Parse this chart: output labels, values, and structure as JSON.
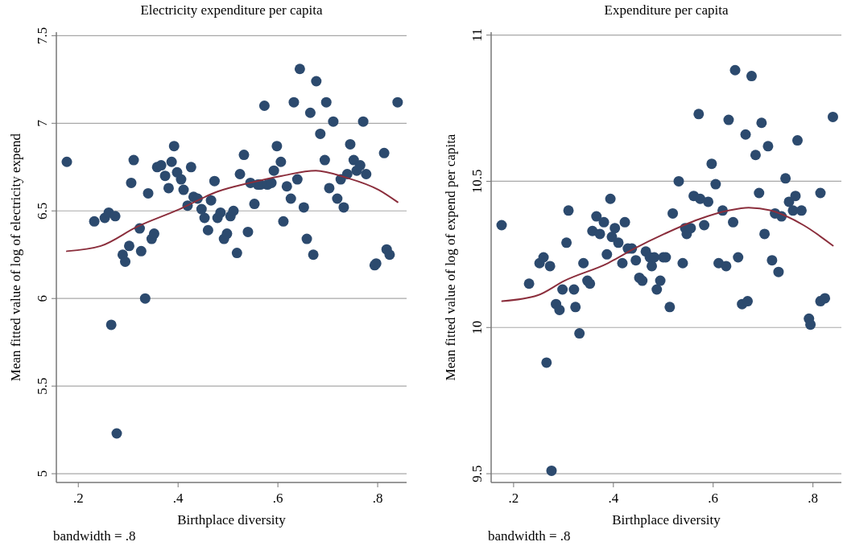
{
  "chart_data": [
    {
      "type": "scatter",
      "title": "Electricity expenditure per capita",
      "xlabel": "Birthplace diversity",
      "ylabel": "Mean fitted value of log of electricity expend",
      "annotations": [
        "bandwidth = .8"
      ],
      "xlim": [
        0.156,
        0.858
      ],
      "ylim": [
        4.95,
        7.52
      ],
      "xticks": [
        {
          "value": 0.2,
          "label": ".2"
        },
        {
          "value": 0.4,
          "label": ".4"
        },
        {
          "value": 0.6,
          "label": ".6"
        },
        {
          "value": 0.8,
          "label": ".8"
        }
      ],
      "yticks": [
        5,
        5.5,
        6,
        6.5,
        7,
        7.5
      ],
      "grid": "y",
      "marker": "circle",
      "series": [
        {
          "color": "#2c4a6e",
          "x": [
            0.177,
            0.232,
            0.253,
            0.261,
            0.274,
            0.266,
            0.277,
            0.289,
            0.294,
            0.302,
            0.306,
            0.311,
            0.323,
            0.326,
            0.334,
            0.34,
            0.347,
            0.352,
            0.358,
            0.366,
            0.374,
            0.381,
            0.387,
            0.392,
            0.398,
            0.406,
            0.411,
            0.419,
            0.426,
            0.431,
            0.439,
            0.447,
            0.453,
            0.46,
            0.466,
            0.473,
            0.479,
            0.485,
            0.492,
            0.498,
            0.505,
            0.511,
            0.518,
            0.524,
            0.532,
            0.54,
            0.545,
            0.553,
            0.56,
            0.565,
            0.573,
            0.579,
            0.587,
            0.592,
            0.598,
            0.606,
            0.611,
            0.618,
            0.626,
            0.632,
            0.639,
            0.644,
            0.652,
            0.658,
            0.665,
            0.671,
            0.677,
            0.685,
            0.694,
            0.697,
            0.703,
            0.711,
            0.719,
            0.726,
            0.732,
            0.739,
            0.745,
            0.752,
            0.758,
            0.765,
            0.771,
            0.777,
            0.794,
            0.797,
            0.813,
            0.818,
            0.824,
            0.84
          ],
          "values": [
            6.78,
            6.44,
            6.46,
            6.49,
            6.47,
            5.85,
            5.23,
            6.25,
            6.21,
            6.3,
            6.66,
            6.79,
            6.4,
            6.27,
            6.0,
            6.6,
            6.34,
            6.37,
            6.75,
            6.76,
            6.7,
            6.63,
            6.78,
            6.87,
            6.72,
            6.68,
            6.62,
            6.53,
            6.75,
            6.58,
            6.57,
            6.51,
            6.46,
            6.39,
            6.56,
            6.67,
            6.46,
            6.49,
            6.34,
            6.37,
            6.47,
            6.5,
            6.26,
            6.71,
            6.82,
            6.38,
            6.66,
            6.54,
            6.65,
            6.65,
            7.1,
            6.65,
            6.66,
            6.73,
            6.87,
            6.78,
            6.44,
            6.64,
            6.57,
            7.12,
            6.68,
            7.31,
            6.52,
            6.34,
            7.06,
            6.25,
            7.24,
            6.94,
            6.79,
            7.12,
            6.63,
            7.01,
            6.57,
            6.68,
            6.52,
            6.71,
            6.88,
            6.79,
            6.73,
            6.76,
            7.01,
            6.71,
            6.19,
            6.2,
            6.83,
            6.28,
            6.25,
            7.12
          ]
        },
        {
          "type": "line",
          "color": "#8b2e3c",
          "marker": "none",
          "x": [
            0.177,
            0.245,
            0.318,
            0.403,
            0.479,
            0.544,
            0.608,
            0.676,
            0.737,
            0.802,
            0.84
          ],
          "values": [
            6.27,
            6.3,
            6.41,
            6.51,
            6.61,
            6.66,
            6.7,
            6.73,
            6.69,
            6.62,
            6.55
          ]
        }
      ]
    },
    {
      "type": "scatter",
      "title": "Expenditure per capita",
      "xlabel": "Birthplace diversity",
      "ylabel": "Mean fitted value of log of expend per capita",
      "annotations": [
        "bandwidth = .8"
      ],
      "xlim": [
        0.155,
        0.857
      ],
      "ylim": [
        9.47,
        11.01
      ],
      "xticks": [
        {
          "value": 0.2,
          "label": ".2"
        },
        {
          "value": 0.4,
          "label": ".4"
        },
        {
          "value": 0.6,
          "label": ".6"
        },
        {
          "value": 0.8,
          "label": ".8"
        }
      ],
      "yticks": [
        9.5,
        10,
        10.5,
        11
      ],
      "grid": "y",
      "marker": "circle",
      "series": [
        {
          "color": "#2c4a6e",
          "x": [
            0.176,
            0.231,
            0.252,
            0.26,
            0.273,
            0.266,
            0.276,
            0.285,
            0.292,
            0.298,
            0.306,
            0.31,
            0.321,
            0.324,
            0.332,
            0.34,
            0.348,
            0.353,
            0.358,
            0.366,
            0.373,
            0.381,
            0.387,
            0.394,
            0.397,
            0.403,
            0.41,
            0.418,
            0.423,
            0.429,
            0.437,
            0.445,
            0.452,
            0.458,
            0.465,
            0.473,
            0.477,
            0.482,
            0.487,
            0.494,
            0.5,
            0.505,
            0.513,
            0.519,
            0.531,
            0.539,
            0.544,
            0.547,
            0.555,
            0.561,
            0.571,
            0.574,
            0.582,
            0.59,
            0.597,
            0.605,
            0.611,
            0.619,
            0.626,
            0.631,
            0.64,
            0.644,
            0.65,
            0.658,
            0.665,
            0.669,
            0.677,
            0.685,
            0.692,
            0.697,
            0.703,
            0.71,
            0.718,
            0.724,
            0.731,
            0.737,
            0.745,
            0.752,
            0.76,
            0.765,
            0.769,
            0.777,
            0.792,
            0.795,
            0.815,
            0.815,
            0.824,
            0.84
          ],
          "values": [
            10.35,
            10.15,
            10.22,
            10.24,
            10.21,
            9.88,
            9.51,
            10.08,
            10.06,
            10.13,
            10.29,
            10.4,
            10.13,
            10.07,
            9.98,
            10.22,
            10.16,
            10.15,
            10.33,
            10.38,
            10.32,
            10.36,
            10.25,
            10.44,
            10.31,
            10.34,
            10.29,
            10.22,
            10.36,
            10.27,
            10.27,
            10.23,
            10.17,
            10.16,
            10.26,
            10.24,
            10.21,
            10.24,
            10.13,
            10.16,
            10.24,
            10.24,
            10.07,
            10.39,
            10.5,
            10.22,
            10.34,
            10.32,
            10.34,
            10.45,
            10.73,
            10.44,
            10.35,
            10.43,
            10.56,
            10.49,
            10.22,
            10.4,
            10.21,
            10.71,
            10.36,
            10.88,
            10.24,
            10.08,
            10.66,
            10.09,
            10.86,
            10.59,
            10.46,
            10.7,
            10.32,
            10.62,
            10.23,
            10.39,
            10.19,
            10.38,
            10.51,
            10.43,
            10.4,
            10.45,
            10.64,
            10.4,
            10.03,
            10.01,
            10.46,
            10.09,
            10.1,
            10.72
          ]
        },
        {
          "type": "line",
          "color": "#8b2e3c",
          "marker": "none",
          "x": [
            0.177,
            0.248,
            0.302,
            0.389,
            0.442,
            0.502,
            0.571,
            0.631,
            0.671,
            0.716,
            0.781,
            0.84
          ],
          "values": [
            10.09,
            10.11,
            10.16,
            10.22,
            10.27,
            10.32,
            10.37,
            10.4,
            10.41,
            10.4,
            10.35,
            10.28
          ]
        }
      ]
    }
  ]
}
